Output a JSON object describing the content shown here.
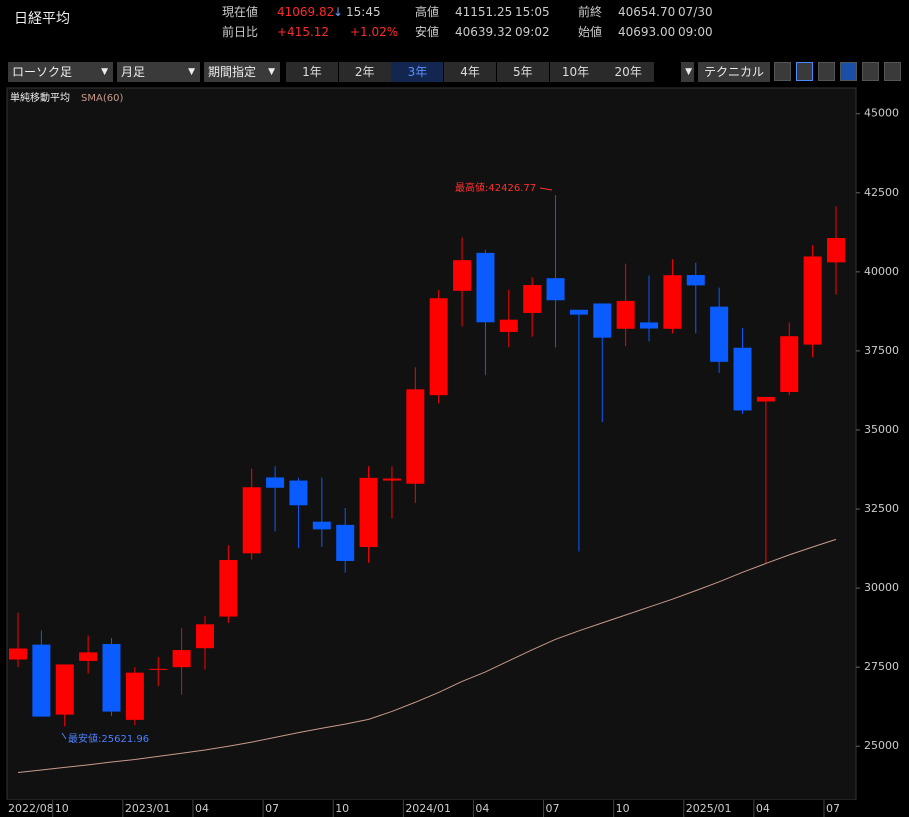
{
  "header": {
    "title": "日経平均",
    "current": {
      "label": "現在値",
      "value": "41069.82",
      "arrow": "↓",
      "time": "15:45"
    },
    "change": {
      "label": "前日比",
      "value": "+415.12",
      "percent": "+1.02%"
    },
    "high": {
      "label": "高値",
      "value": "41151.25",
      "time": "15:05"
    },
    "low": {
      "label": "安値",
      "value": "40639.32",
      "time": "09:02"
    },
    "prev_close": {
      "label": "前終",
      "value": "40654.70",
      "date": "07/30"
    },
    "open": {
      "label": "始値",
      "value": "40693.00",
      "time": "09:00"
    }
  },
  "toolbar": {
    "chart_style": "ローソク足",
    "interval": "月足",
    "range_mode": "期間指定",
    "periods": [
      "1年",
      "2年",
      "3年",
      "4年",
      "5年",
      "10年",
      "20年"
    ],
    "selected_period": 2,
    "technical": "テクニカル"
  },
  "chart_data": {
    "type": "candlestick",
    "categories": [
      "2022/08",
      null,
      "10",
      null,
      null,
      "2023/01",
      null,
      null,
      "04",
      null,
      null,
      "07",
      null,
      null,
      "10",
      null,
      null,
      "2024/01",
      null,
      null,
      "04",
      null,
      null,
      "07",
      null,
      null,
      "10",
      null,
      null,
      "2025/01",
      null,
      null,
      "04",
      null,
      null,
      "07"
    ],
    "open": [
      27742,
      28213,
      26000,
      27698,
      28234,
      25834,
      27420,
      27500,
      28100,
      29100,
      31100,
      33500,
      33400,
      32100,
      32000,
      31300,
      33400,
      33300,
      36100,
      39400,
      40600,
      38100,
      38700,
      39800,
      38800,
      39000,
      38200,
      38400,
      38200,
      39900,
      38900,
      37600,
      35900,
      36200,
      37700,
      40300
    ],
    "high": [
      29222,
      28659,
      27587,
      28502,
      28423,
      27500,
      27821,
      28734,
      29123,
      31352,
      33772,
      33853,
      33488,
      33496,
      32533,
      33853,
      33853,
      36984,
      39426,
      41087,
      40697,
      39437,
      39826,
      42426.77,
      38800,
      39000,
      40257,
      39884,
      40398,
      40288,
      39500,
      38220,
      36000,
      38400,
      40845,
      42065
    ],
    "low": [
      27501,
      25937,
      25621.96,
      27300,
      25953,
      25661,
      26900,
      26632,
      27427,
      28900,
      30900,
      31791,
      31275,
      31300,
      30487,
      30800,
      32205,
      32693,
      35838,
      38271,
      36733,
      37617,
      37950,
      37611,
      31156,
      35247,
      37651,
      37800,
      38054,
      38055,
      36800,
      35500,
      30792,
      36100,
      37300,
      39276
    ],
    "close": [
      28091,
      25937,
      27587,
      27968,
      26095,
      27327,
      27446,
      28041,
      28856,
      30888,
      33189,
      33172,
      32619,
      31857,
      30858,
      33486,
      33464,
      36286,
      39166,
      40369,
      38405,
      38487,
      39583,
      39101,
      38647,
      37919,
      39081,
      38208,
      39894,
      39572,
      37155,
      35617,
      36045,
      37965,
      40487,
      41069.82
    ],
    "up_color": "#ff0000",
    "down_color": "#0a5cff",
    "indicator": {
      "title": "単純移動平均",
      "name": "SMA(60)",
      "color": "#c89a8c",
      "values": [
        24170,
        24250,
        24330,
        24410,
        24500,
        24580,
        24680,
        24780,
        24880,
        25000,
        25130,
        25280,
        25430,
        25570,
        25700,
        25850,
        26100,
        26390,
        26700,
        27050,
        27350,
        27700,
        28050,
        28380,
        28650,
        28900,
        29150,
        29400,
        29650,
        29920,
        30200,
        30500,
        30780,
        31050,
        31300,
        31540
      ]
    },
    "annotations": [
      "最高値:42426.77",
      "最安値:25621.96"
    ],
    "ylim": [
      23300,
      45750
    ],
    "yticks": [
      25000,
      27500,
      30000,
      32500,
      35000,
      37500,
      40000,
      42500,
      45000
    ],
    "grid": false
  }
}
